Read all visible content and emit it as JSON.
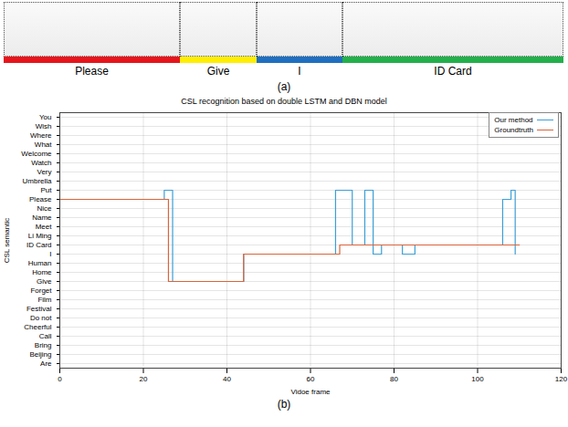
{
  "panel_a": {
    "panel_label": "(a)",
    "segments": [
      {
        "text": "Please",
        "color": "#e8141c"
      },
      {
        "text": "Give",
        "color": "#ffee00"
      },
      {
        "text": "I",
        "color": "#1f6fc0"
      },
      {
        "text": "ID Card",
        "color": "#22b04b"
      }
    ]
  },
  "chart_data": {
    "type": "line",
    "title": "CSL recognition based on double LSTM and DBN model",
    "panel_label": "(b)",
    "x_label": "Vidoe frame",
    "y_label": "CSL semantic",
    "categories": [
      "Are",
      "Beijing",
      "Bring",
      "Call",
      "Cheerful",
      "Do not",
      "Festival",
      "Film",
      "Forget",
      "Give",
      "Home",
      "Human",
      "I",
      "ID Card",
      "Li Ming",
      "Meet",
      "Name",
      "Nice",
      "Please",
      "Put",
      "Umbrella",
      "Very",
      "Watch",
      "Welcome",
      "What",
      "Where",
      "Wish",
      "You"
    ],
    "xlim": [
      0,
      120
    ],
    "xticks": [
      0,
      20,
      40,
      60,
      80,
      100,
      120
    ],
    "grid": true,
    "legend": "top-right",
    "line_style": "step",
    "series": [
      {
        "name": "Our method",
        "color": "#3c9fd6",
        "x": [
          0,
          25,
          27,
          44,
          66,
          70,
          73,
          75,
          77,
          82,
          85,
          106,
          108,
          109
        ],
        "values": [
          "Please",
          "Put",
          "Give",
          "I",
          "Put",
          "ID Card",
          "Put",
          "I",
          "ID Card",
          "I",
          "ID Card",
          "Please",
          "Put",
          "I"
        ]
      },
      {
        "name": "Groundtruth",
        "color": "#d9643a",
        "x": [
          0,
          26,
          44,
          67,
          110
        ],
        "values": [
          "Please",
          "Give",
          "I",
          "ID Card",
          "ID Card"
        ]
      }
    ]
  }
}
